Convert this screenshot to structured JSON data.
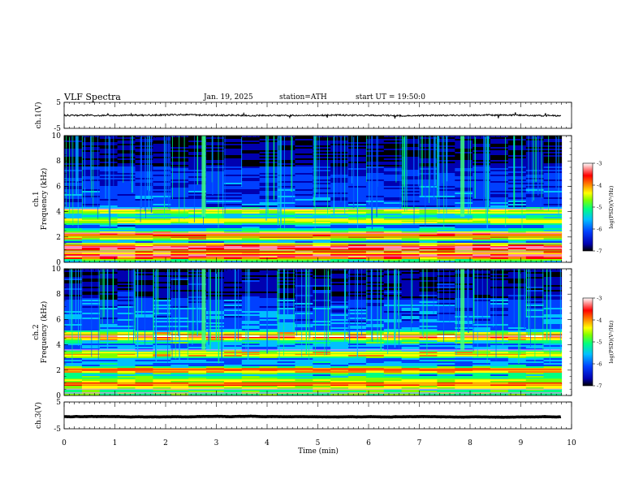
{
  "header": {
    "title": "VLF  Spectra",
    "date": "Jan. 19, 2025",
    "station": "station=ATH",
    "start": "start  UT  =    19:50:0"
  },
  "colors": {
    "trace": "#000000",
    "colormap": [
      "#000000",
      "#0000b0",
      "#0040ff",
      "#00c0ff",
      "#00ff80",
      "#80ff00",
      "#ffff00",
      "#ff8000",
      "#ff0000",
      "#ff9090",
      "#ffffff"
    ]
  },
  "chart_data": [
    {
      "type": "line",
      "name": "ch1-waveform",
      "ylabel": "ch.1(V)",
      "ylim": [
        -5,
        5
      ],
      "yticks": [
        "5",
        "-5"
      ],
      "x_range_min": [
        0,
        9.8
      ],
      "level": 0.0,
      "noise_amplitude": 0.6
    },
    {
      "type": "heatmap",
      "name": "ch1-spectrogram",
      "ylabel_channel": "ch.1",
      "ylabel": "Frequency  (kHz)",
      "ylim": [
        0,
        10
      ],
      "yticks": [
        "0",
        "2",
        "4",
        "6",
        "8",
        "10"
      ],
      "x_range_min": [
        0,
        9.8
      ],
      "colorbar": {
        "label": "log(PSD)(V²/Hz)",
        "range": [
          -7,
          -3
        ],
        "ticks": [
          "-3",
          "-4",
          "-5",
          "-6",
          "-7"
        ]
      },
      "strong_bands_khz": [
        0.5,
        0.9,
        1.2,
        2.0,
        2.3,
        3.3,
        4.0
      ],
      "bursts_min": [
        2.75,
        7.85
      ]
    },
    {
      "type": "heatmap",
      "name": "ch2-spectrogram",
      "ylabel_channel": "ch.2",
      "ylabel": "Frequency  (kHz)",
      "ylim": [
        0,
        10
      ],
      "yticks": [
        "0",
        "2",
        "4",
        "6",
        "8",
        "10"
      ],
      "x_range_min": [
        0,
        9.8
      ],
      "colorbar": {
        "label": "log(PSD)(V²/Hz)",
        "range": [
          -7,
          -3
        ],
        "ticks": [
          "-3",
          "-4",
          "-5",
          "-6",
          "-7"
        ]
      },
      "strong_bands_khz": [
        2.0,
        3.3,
        4.8,
        4.5,
        0.9
      ],
      "bursts_min": [
        2.75,
        7.85
      ]
    },
    {
      "type": "line",
      "name": "ch3-waveform",
      "ylabel": "ch.3(V)",
      "ylim": [
        -5,
        5
      ],
      "yticks": [
        "5",
        "-5"
      ],
      "x_range_min": [
        0,
        9.8
      ],
      "level": -0.5,
      "noise_amplitude": 0.1
    }
  ],
  "xaxis": {
    "label": "Time  (min)",
    "range": [
      0,
      10
    ],
    "ticks": [
      "0",
      "1",
      "2",
      "3",
      "4",
      "5",
      "6",
      "7",
      "8",
      "9",
      "10"
    ]
  }
}
